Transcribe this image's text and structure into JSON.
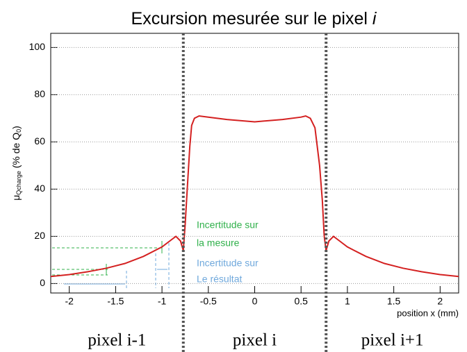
{
  "chart_data": {
    "type": "line",
    "title": [
      "Excursion mesurée sur le pixel ",
      "i"
    ],
    "y_label": [
      "μ",
      "Qcharge",
      " (% de Q",
      "0",
      ")"
    ],
    "x_label": "position x (mm)",
    "x": [
      -2.2,
      -2.0,
      -1.8,
      -1.6,
      -1.4,
      -1.2,
      -1.0,
      -0.9,
      -0.85,
      -0.8,
      -0.77,
      -0.75,
      -0.72,
      -0.7,
      -0.68,
      -0.65,
      -0.6,
      -0.5,
      -0.3,
      0,
      0.3,
      0.5,
      0.55,
      0.6,
      0.65,
      0.7,
      0.73,
      0.75,
      0.77,
      0.8,
      0.85,
      0.9,
      1.0,
      1.2,
      1.4,
      1.6,
      1.8,
      2.0,
      2.2
    ],
    "series": [
      {
        "color": "#d42020",
        "values": [
          3,
          3.8,
          5,
          6.5,
          8.5,
          11.5,
          15.5,
          18.5,
          20,
          18,
          14,
          25,
          45,
          58,
          67,
          70,
          71,
          70.5,
          69.5,
          68.5,
          69.5,
          70.5,
          71,
          70,
          66,
          50,
          35,
          20,
          14,
          18,
          20,
          18.5,
          15.5,
          11.5,
          8.5,
          6.5,
          5,
          3.8,
          3
        ]
      }
    ],
    "xlim": [
      -2.2,
      2.2
    ],
    "ylim": [
      -4,
      106
    ],
    "xticks": [
      -2,
      -1.5,
      -1,
      -0.5,
      0,
      0.5,
      1,
      1.5,
      2
    ],
    "yticks": [
      0,
      20,
      40,
      60,
      80,
      100
    ],
    "grid": true,
    "boundaries": [
      -0.77,
      0.77
    ],
    "regions": [
      "pixel i-1",
      "pixel i",
      "pixel i+1"
    ],
    "annotations": [
      {
        "lines": [
          "Incertitude sur",
          "la mesure"
        ],
        "color": "#2fb04a"
      },
      {
        "lines": [
          "Incertitude sur",
          "Le résultat"
        ],
        "color": "#6fa8dc"
      }
    ]
  }
}
